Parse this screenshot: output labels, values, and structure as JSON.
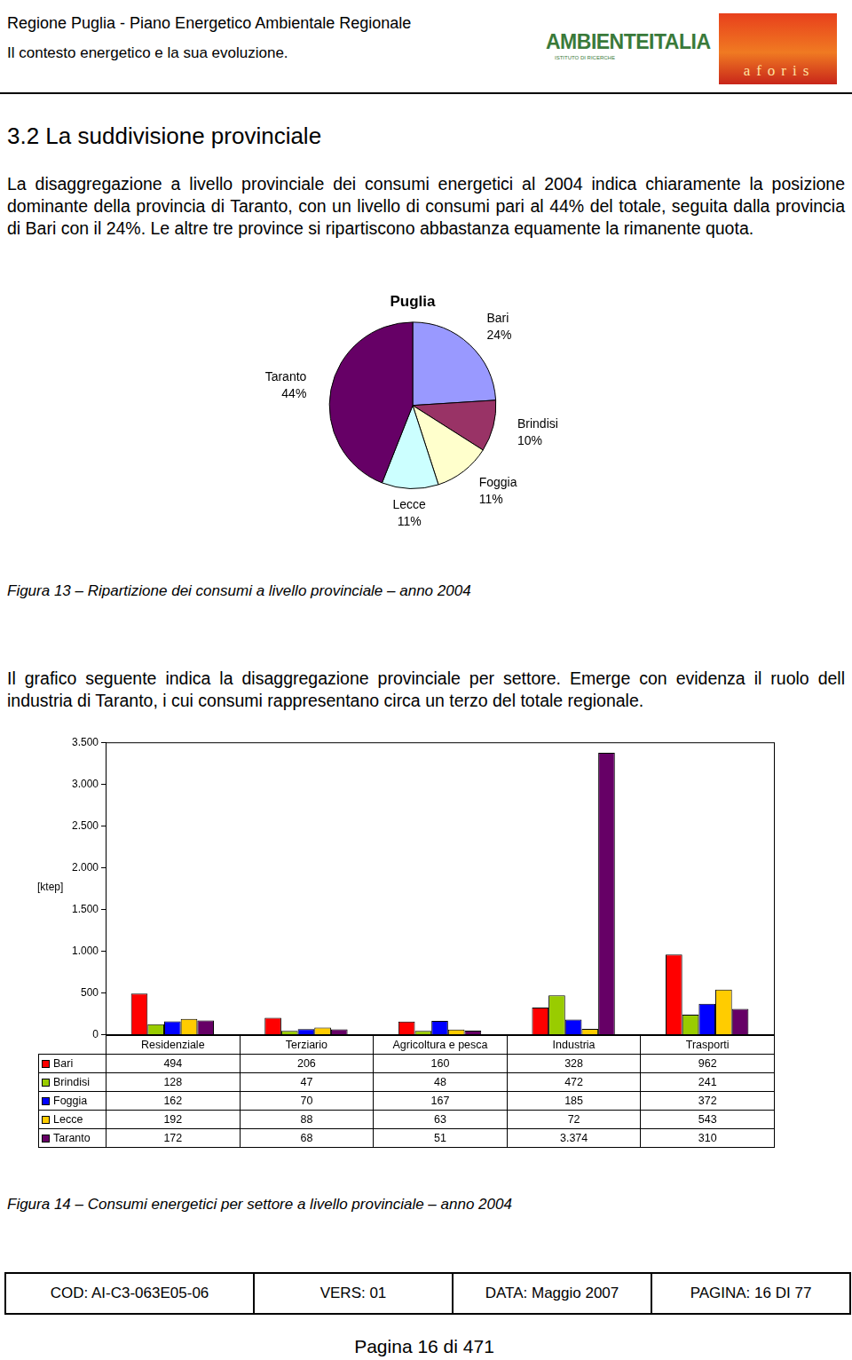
{
  "header": {
    "title": "Regione Puglia - Piano Energetico Ambientale Regionale",
    "subtitle": "Il contesto energetico e la sua evoluzione.",
    "logos": [
      "AMBIENTEITALIA",
      "ISTITUTO DI RICERCHE",
      "aforis"
    ]
  },
  "section": {
    "title": "3.2 La suddivisione provinciale",
    "paragraphs": [
      "La disaggregazione a livello provinciale dei consumi energetici al 2004 indica chiaramente la posizione dominante della provincia di Taranto, con un livello di consumi pari al 44% del totale, seguita dalla provincia di Bari con il 24%. Le altre tre province si ripartiscono abbastanza equamente la rimanente quota.",
      "Il grafico seguente indica la disaggregazione provinciale per settore. Emerge con evidenza il ruolo dell industria di Taranto, i cui consumi rappresentano circa un terzo del totale regionale."
    ]
  },
  "captions": [
    "Figura 13 – Ripartizione dei consumi a livello provinciale – anno 2004",
    "Figura 14 – Consumi energetici per settore a livello provinciale – anno 2004"
  ],
  "chart_data": [
    {
      "type": "pie",
      "title": "Puglia",
      "categories": [
        "Bari",
        "Brindisi",
        "Foggia",
        "Lecce",
        "Taranto"
      ],
      "values": [
        24,
        10,
        11,
        11,
        44
      ],
      "value_labels": [
        "24%",
        "10%",
        "11%",
        "11%",
        "44%"
      ],
      "colors": [
        "#9999ff",
        "#993366",
        "#ffffcc",
        "#ccffff",
        "#660066"
      ],
      "data_labels": true
    },
    {
      "type": "bar",
      "ylabel": "[ktep]",
      "categories": [
        "Residenziale",
        "Terziario",
        "Agricoltura e pesca",
        "Industria",
        "Trasporti"
      ],
      "series": [
        {
          "name": "Bari",
          "color": "#ff0000",
          "values": [
            494,
            206,
            160,
            328,
            962
          ]
        },
        {
          "name": "Brindisi",
          "color": "#99cc00",
          "values": [
            128,
            47,
            48,
            472,
            241
          ]
        },
        {
          "name": "Foggia",
          "color": "#0000ff",
          "values": [
            162,
            70,
            167,
            185,
            372
          ]
        },
        {
          "name": "Lecce",
          "color": "#ffcc00",
          "values": [
            192,
            88,
            63,
            72,
            543
          ]
        },
        {
          "name": "Taranto",
          "color": "#660066",
          "values": [
            172,
            68,
            51,
            3374,
            310
          ],
          "value_labels": [
            "172",
            "68",
            "51",
            "3.374",
            "310"
          ]
        }
      ],
      "ylim": [
        0,
        3500
      ],
      "yticks": [
        0,
        500,
        {
          "value": 1000,
          "label": "1.000"
        },
        {
          "value": 1500,
          "label": "1.500"
        },
        {
          "value": 2000,
          "label": "2.000"
        },
        {
          "value": 2500,
          "label": "2.500"
        },
        {
          "value": 3000,
          "label": "3.000"
        },
        {
          "value": 3500,
          "label": "3.500"
        }
      ],
      "grid": false
    }
  ],
  "footer": {
    "cells": [
      "COD: AI-C3-063E05-06",
      "VERS: 01",
      "DATA: Maggio 2007",
      "PAGINA: 16 DI 77"
    ],
    "page": "Pagina 16 di 471"
  }
}
